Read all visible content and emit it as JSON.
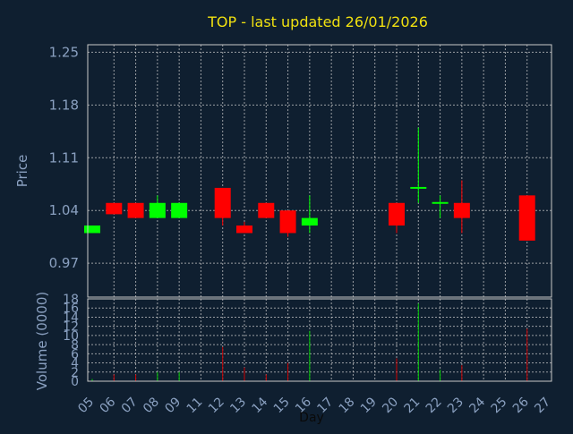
{
  "chart_data": [
    {
      "type": "candlestick",
      "title": "TOP - last updated 26/01/2026",
      "ylabel": "Price",
      "ylim": [
        0.925,
        1.26
      ],
      "yticks": [
        "1.25",
        "1.18",
        "1.11",
        "1.04",
        "0.97"
      ],
      "ytick_values": [
        1.25,
        1.18,
        1.11,
        1.04,
        0.97
      ],
      "grid": true,
      "up_color": "#00ff00",
      "down_color": "#ff0000",
      "candles": [
        {
          "day": "05",
          "open": 1.01,
          "high": 1.02,
          "low": 1.01,
          "close": 1.02
        },
        {
          "day": "06",
          "open": 1.05,
          "high": 1.05,
          "low": 1.035,
          "close": 1.035
        },
        {
          "day": "07",
          "open": 1.05,
          "high": 1.05,
          "low": 1.03,
          "close": 1.03
        },
        {
          "day": "08",
          "open": 1.03,
          "high": 1.06,
          "low": 1.03,
          "close": 1.05
        },
        {
          "day": "09",
          "open": 1.03,
          "high": 1.05,
          "low": 1.03,
          "close": 1.05
        },
        {
          "day": "12",
          "open": 1.07,
          "high": 1.07,
          "low": 1.02,
          "close": 1.03
        },
        {
          "day": "13",
          "open": 1.02,
          "high": 1.025,
          "low": 1.01,
          "close": 1.01
        },
        {
          "day": "14",
          "open": 1.05,
          "high": 1.05,
          "low": 1.03,
          "close": 1.03
        },
        {
          "day": "15",
          "open": 1.04,
          "high": 1.04,
          "low": 1.005,
          "close": 1.01
        },
        {
          "day": "16",
          "open": 1.02,
          "high": 1.06,
          "low": 1.01,
          "close": 1.03
        },
        {
          "day": "20",
          "open": 1.05,
          "high": 1.05,
          "low": 1.01,
          "close": 1.02
        },
        {
          "day": "21",
          "open": 1.07,
          "high": 1.15,
          "low": 1.05,
          "close": 1.07
        },
        {
          "day": "22",
          "open": 1.05,
          "high": 1.06,
          "low": 1.03,
          "close": 1.05
        },
        {
          "day": "23",
          "open": 1.05,
          "high": 1.08,
          "low": 1.01,
          "close": 1.03
        },
        {
          "day": "26",
          "open": 1.06,
          "high": 1.06,
          "low": 1.0,
          "close": 1.0
        }
      ]
    },
    {
      "type": "bar",
      "ylabel": "Volume (0000)",
      "ylim": [
        0,
        18
      ],
      "yticks": [
        "18",
        "16",
        "14",
        "12",
        "10",
        "8",
        "6",
        "4",
        "2",
        "0"
      ],
      "ytick_values": [
        18,
        16,
        14,
        12,
        10,
        8,
        6,
        4,
        2,
        0
      ],
      "xlabel": "Day",
      "grid": true,
      "categories": [
        "05",
        "06",
        "07",
        "08",
        "09",
        "12",
        "13",
        "14",
        "15",
        "16",
        "20",
        "21",
        "22",
        "23",
        "26"
      ],
      "values": [
        0.5,
        1.5,
        1.5,
        2.0,
        2.0,
        7.5,
        3.0,
        1.5,
        4.0,
        11.0,
        5.0,
        17.0,
        2.5,
        3.5,
        11.5
      ],
      "colors": [
        "green",
        "red",
        "red",
        "green",
        "green",
        "red",
        "red",
        "red",
        "red",
        "green",
        "red",
        "green",
        "green",
        "red",
        "red"
      ],
      "x_tick_labels": [
        "05",
        "06",
        "07",
        "08",
        "09",
        "11",
        "12",
        "13",
        "14",
        "15",
        "16",
        "17",
        "18",
        "19",
        "20",
        "21",
        "22",
        "23",
        "24",
        "25",
        "26",
        "27"
      ]
    }
  ]
}
